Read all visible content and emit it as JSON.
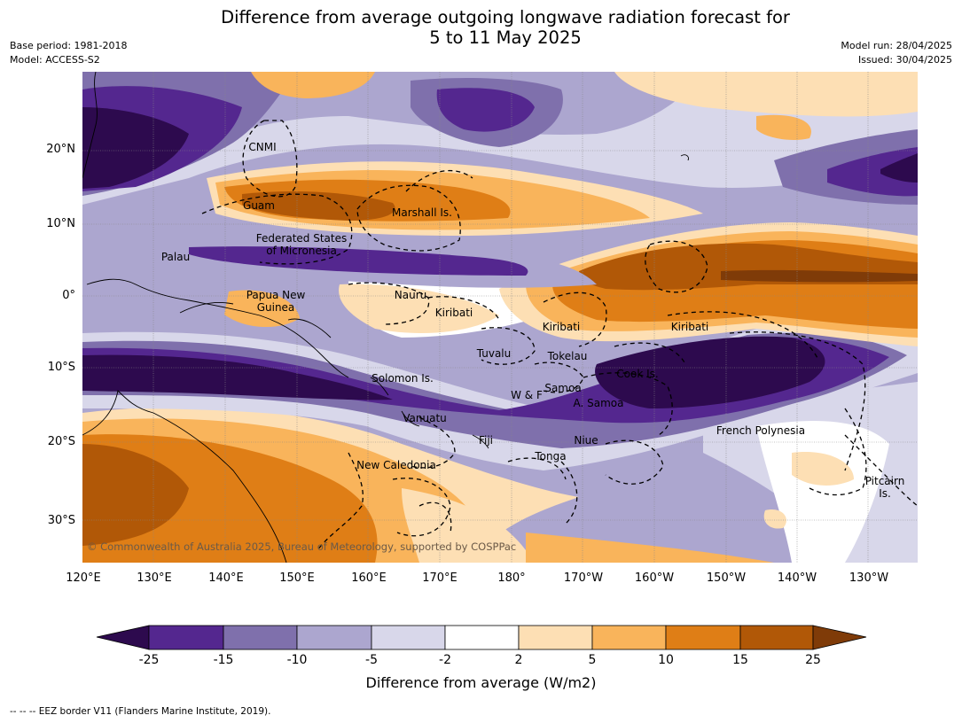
{
  "title_line1": "Difference from average outgoing longwave radiation forecast for",
  "title_line2": "5 to 11 May 2025",
  "base_period": "Base period: 1981-2018",
  "model": "Model: ACCESS-S2",
  "model_run": "Model run: 28/04/2025",
  "issued": "Issued: 30/04/2025",
  "lat_labels": [
    "20°N",
    "10°N",
    "0°",
    "10°S",
    "20°S",
    "30°S"
  ],
  "lon_labels": [
    "120°E",
    "130°E",
    "140°E",
    "150°E",
    "160°E",
    "170°E",
    "180°",
    "170°W",
    "160°W",
    "150°W",
    "140°W",
    "130°W"
  ],
  "places": {
    "cnmi": "CNMI",
    "guam": "Guam",
    "marshall": "Marshall Is.",
    "fsm_1": "Federated States",
    "fsm_2": "of Micronesia",
    "palau": "Palau",
    "png_1": "Papua New",
    "png_2": "Guinea",
    "nauru": "Nauru",
    "kiribati_1": "Kiribati",
    "kiribati_2": "Kiribati",
    "kiribati_3": "Kiribati",
    "tuvalu": "Tuvalu",
    "tokelau": "Tokelau",
    "solomon": "Solomon Is.",
    "samoa": "Samoa",
    "wf": "W & F",
    "asamoa": "A. Samoa",
    "cook": "Cook Is.",
    "vanuatu": "Vanuatu",
    "fiji": "Fiji",
    "niue": "Niue",
    "tonga": "Tonga",
    "french_polynesia": "French Polynesia",
    "new_caledonia": "New Caledonia",
    "pitcairn_1": "Pitcairn",
    "pitcairn_2": "Is."
  },
  "copyright": "© Commonwealth of Australia 2025, Bureau of Meteorology, supported by COSPPac",
  "colorbar": {
    "ticks": [
      "-25",
      "-15",
      "-10",
      "-5",
      "-2",
      "2",
      "5",
      "10",
      "15",
      "25"
    ],
    "label": "Difference from average (W/m2)",
    "colors": {
      "below": "#2d0a4e",
      "c1": "#54278f",
      "c2": "#7f70ac",
      "c3": "#aca6cf",
      "c4": "#d8d7ea",
      "c5": "#ffffff",
      "c6": "#fddfb4",
      "c7": "#f9b45b",
      "c8": "#df7e16",
      "c9": "#b15807",
      "above": "#7f3b08"
    }
  },
  "footnote": "--  --  -- EEZ border V11 (Flanders Marine Institute, 2019)."
}
